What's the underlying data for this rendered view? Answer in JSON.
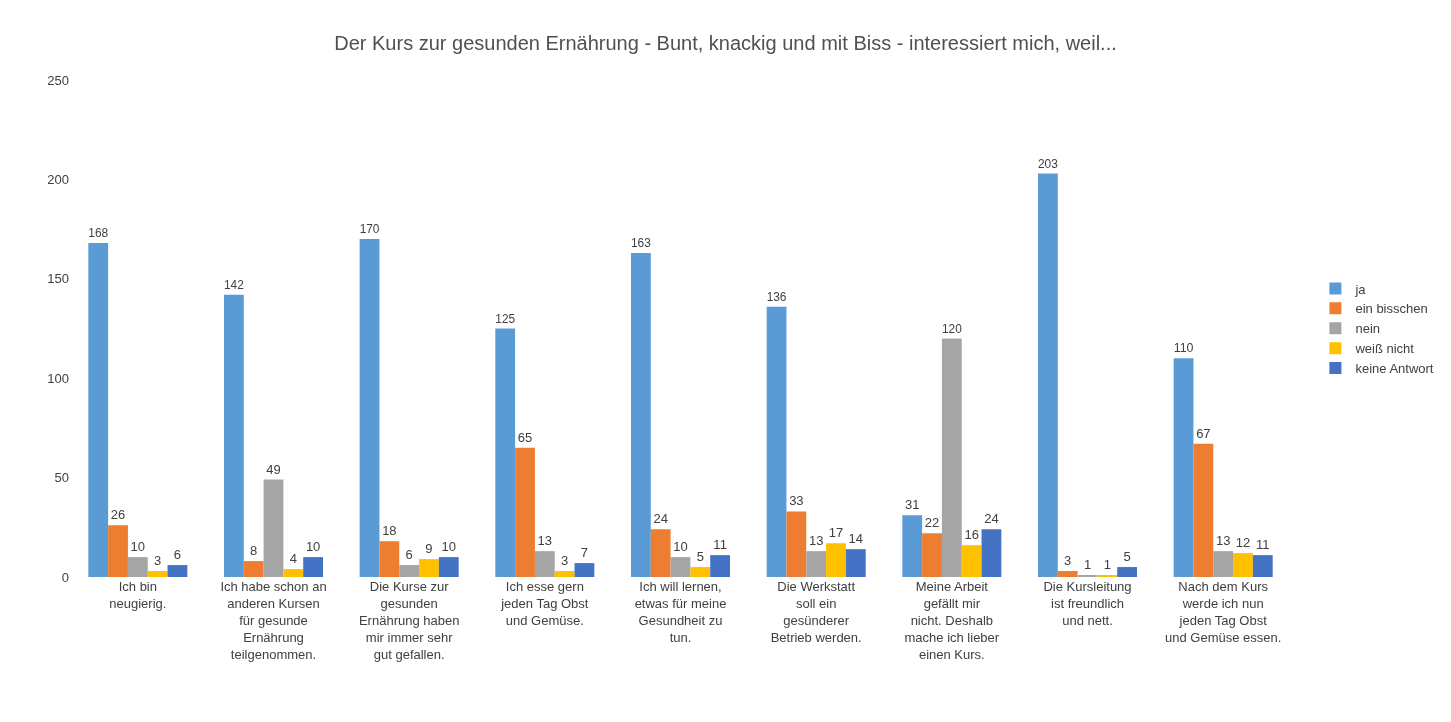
{
  "chart_data": {
    "type": "bar",
    "title": "Der Kurs zur gesunden Ernährung - Bunt, knackig und mit Biss - interessiert mich, weil...",
    "categories": [
      "Ich bin neugierig.",
      "Ich habe schon an anderen Kursen für gesunde Ernährung teilgenommen.",
      "Die Kurse zur gesunden Ernährung haben mir immer sehr gut gefallen.",
      "Ich esse gern jeden Tag Obst und Gemüse.",
      "Ich will lernen, etwas für meine Gesundheit zu tun.",
      "Die Werkstatt soll ein gesünderer Betrieb werden.",
      "Meine Arbeit gefällt mir nicht. Deshalb mache ich lieber einen Kurs.",
      "Die Kursleitung ist freundlich und nett.",
      "Nach dem Kurs werde ich nun jeden Tag Obst und Gemüse essen."
    ],
    "series": [
      {
        "name": "ja",
        "color": "#5b9bd5",
        "values": [
          168,
          142,
          170,
          125,
          163,
          136,
          31,
          203,
          110
        ]
      },
      {
        "name": "ein bisschen",
        "color": "#ed7d31",
        "values": [
          26,
          8,
          18,
          65,
          24,
          33,
          22,
          3,
          67
        ]
      },
      {
        "name": "nein",
        "color": "#a5a5a5",
        "values": [
          10,
          49,
          6,
          13,
          10,
          13,
          120,
          1,
          13
        ]
      },
      {
        "name": "weiß nicht",
        "color": "#ffc000",
        "values": [
          3,
          4,
          9,
          3,
          5,
          17,
          16,
          1,
          12
        ]
      },
      {
        "name": "keine Antwort",
        "color": "#4472c4",
        "values": [
          6,
          10,
          10,
          7,
          11,
          14,
          24,
          5,
          11
        ]
      }
    ],
    "ylim": [
      0,
      250
    ],
    "yticks": [
      0,
      50,
      100,
      150,
      200,
      250
    ],
    "grid": false,
    "legend": "right",
    "data_labels": true
  }
}
